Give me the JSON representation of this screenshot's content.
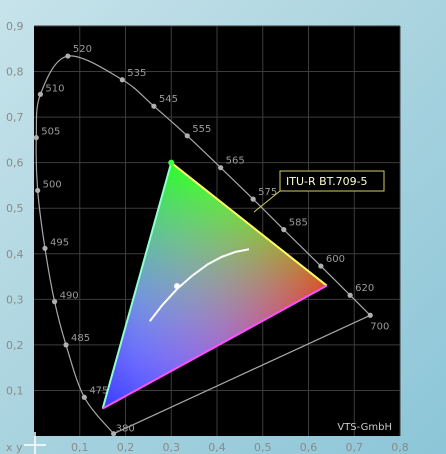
{
  "chart_data": {
    "type": "scatter",
    "title": "",
    "axis_corner_label": "x y",
    "xlim": [
      0,
      0.8
    ],
    "ylim": [
      0,
      0.9
    ],
    "x_ticks": [
      "0,1",
      "0,2",
      "0,3",
      "0,4",
      "0,5",
      "0,6",
      "0,7",
      "0,8"
    ],
    "y_ticks": [
      "0,1",
      "0,2",
      "0,3",
      "0,4",
      "0,5",
      "0,6",
      "0,7",
      "0,8",
      "0,9"
    ],
    "x_tick_values": [
      0.1,
      0.2,
      0.3,
      0.4,
      0.5,
      0.6,
      0.7,
      0.8
    ],
    "y_tick_values": [
      0.1,
      0.2,
      0.3,
      0.4,
      0.5,
      0.6,
      0.7,
      0.8,
      0.9
    ],
    "grid": true,
    "spectral_locus": [
      {
        "wl": "380",
        "x": 0.174,
        "y": 0.005
      },
      {
        "wl": "475",
        "x": 0.11,
        "y": 0.085
      },
      {
        "wl": "485",
        "x": 0.07,
        "y": 0.2
      },
      {
        "wl": "490",
        "x": 0.045,
        "y": 0.295
      },
      {
        "wl": "495",
        "x": 0.024,
        "y": 0.412
      },
      {
        "wl": "500",
        "x": 0.008,
        "y": 0.539
      },
      {
        "wl": "505",
        "x": 0.005,
        "y": 0.655
      },
      {
        "wl": "510",
        "x": 0.014,
        "y": 0.75
      },
      {
        "wl": "520",
        "x": 0.074,
        "y": 0.834
      },
      {
        "wl": "535",
        "x": 0.193,
        "y": 0.782
      },
      {
        "wl": "545",
        "x": 0.262,
        "y": 0.724
      },
      {
        "wl": "555",
        "x": 0.335,
        "y": 0.659
      },
      {
        "wl": "565",
        "x": 0.408,
        "y": 0.589
      },
      {
        "wl": "575",
        "x": 0.479,
        "y": 0.52
      },
      {
        "wl": "585",
        "x": 0.546,
        "y": 0.453
      },
      {
        "wl": "600",
        "x": 0.627,
        "y": 0.373
      },
      {
        "wl": "620",
        "x": 0.691,
        "y": 0.309
      },
      {
        "wl": "700",
        "x": 0.735,
        "y": 0.265
      }
    ],
    "gamut": {
      "name": "ITU-R BT.709-5",
      "red": {
        "x": 0.64,
        "y": 0.33
      },
      "green": {
        "x": 0.3,
        "y": 0.6
      },
      "blue": {
        "x": 0.15,
        "y": 0.06
      }
    },
    "white_point": {
      "x": 0.3127,
      "y": 0.329
    },
    "planckian_locus": [
      {
        "x": 0.253,
        "y": 0.252
      },
      {
        "x": 0.281,
        "y": 0.288
      },
      {
        "x": 0.313,
        "y": 0.323
      },
      {
        "x": 0.346,
        "y": 0.352
      },
      {
        "x": 0.38,
        "y": 0.377
      },
      {
        "x": 0.41,
        "y": 0.393
      },
      {
        "x": 0.44,
        "y": 0.404
      },
      {
        "x": 0.47,
        "y": 0.41
      }
    ],
    "credit": "VTS-GmbH"
  }
}
